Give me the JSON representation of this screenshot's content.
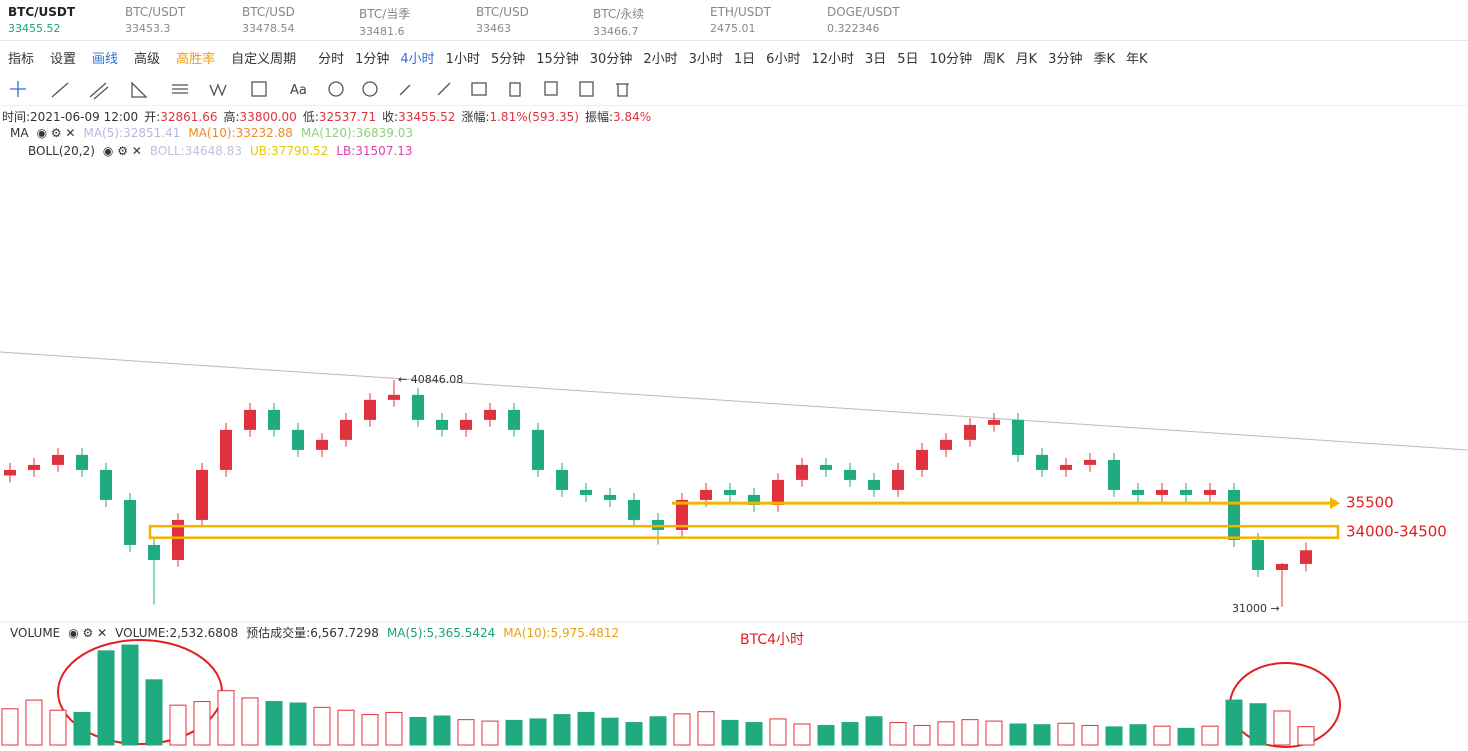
{
  "tabs": [
    {
      "name": "BTC/USDT",
      "price": "33455.52"
    },
    {
      "name": "BTC/USDT",
      "price": "33453.3"
    },
    {
      "name": "BTC/USD",
      "price": "33478.54"
    },
    {
      "name": "BTC/当季",
      "price": "33481.6"
    },
    {
      "name": "BTC/USD",
      "price": "33463"
    },
    {
      "name": "BTC/永续",
      "price": "33466.7"
    },
    {
      "name": "ETH/USDT",
      "price": "2475.01"
    },
    {
      "name": "DOGE/USDT",
      "price": "0.322346"
    }
  ],
  "menu": [
    "指标",
    "设置",
    "画线",
    "高级",
    "高胜率",
    "自定义周期"
  ],
  "periods": [
    "分时",
    "1分钟",
    "4小时",
    "1小时",
    "5分钟",
    "15分钟",
    "30分钟",
    "2小时",
    "3小时",
    "1日",
    "6小时",
    "12小时",
    "3日",
    "5日",
    "10分钟",
    "周K",
    "月K",
    "3分钟",
    "季K",
    "年K"
  ],
  "active_period": 2,
  "tool_text": "Aa",
  "info": [
    {
      "label": "时间:",
      "value": "2021-06-09 12:00"
    },
    {
      "label": "开:",
      "value": "32861.66"
    },
    {
      "label": "高:",
      "value": "33800.00"
    },
    {
      "label": "低:",
      "value": "32537.71"
    },
    {
      "label": "收:",
      "value": "33455.52"
    },
    {
      "label": "涨幅:",
      "value": "1.81%(593.35)"
    },
    {
      "label": "振幅:",
      "value": "3.84%"
    }
  ],
  "legends": [
    {
      "name": "MA",
      "items": [
        {
          "text": "MA(5):32851.41",
          "color": "#b8b8e0"
        },
        {
          "text": "MA(10):33232.88",
          "color": "#f08a24"
        },
        {
          "text": "MA(120):36839.03",
          "color": "#8fd17a"
        }
      ]
    },
    {
      "name": "BOLL(20,2)",
      "items": [
        {
          "text": "BOLL:34648.83",
          "color": "#c0c0e0"
        },
        {
          "text": "UB:37790.52",
          "color": "#e8c800"
        },
        {
          "text": "LB:31507.13",
          "color": "#e040b0"
        }
      ]
    }
  ],
  "volume_legend": {
    "name": "VOLUME",
    "items": [
      {
        "text": "VOLUME:2,532.6808",
        "color": "#333"
      },
      {
        "text": "预估成交量:6,567.7298",
        "color": "#333"
      },
      {
        "text": "MA(5):5,365.5424",
        "color": "#17a37a"
      },
      {
        "text": "MA(10):5,975.4812",
        "color": "#e8a018"
      }
    ]
  },
  "chart": {
    "type": "candlestick",
    "label": "BTC4小时",
    "ylim": [
      30430,
      51900
    ],
    "vlim": [
      0,
      14500
    ],
    "up_color": "#e0323e",
    "down_color": "#1faa80",
    "ohlc": [
      [
        36700,
        37240,
        36400,
        36940
      ],
      [
        36940,
        37457,
        36640,
        37157
      ],
      [
        37157,
        37891,
        36857,
        37591
      ],
      [
        37591,
        37891,
        36640,
        36940
      ],
      [
        36940,
        37240,
        35338,
        35638
      ],
      [
        35638,
        35938,
        33385,
        33685
      ],
      [
        33685,
        33985,
        31100,
        33034
      ],
      [
        33034,
        35070,
        32734,
        34770
      ],
      [
        34770,
        37240,
        34470,
        36940
      ],
      [
        36940,
        38976,
        36640,
        38676
      ],
      [
        38676,
        39844,
        38376,
        39544
      ],
      [
        39544,
        39844,
        38376,
        38676
      ],
      [
        38676,
        38976,
        37508,
        37808
      ],
      [
        37808,
        38542,
        37508,
        38242
      ],
      [
        38242,
        39410,
        37942,
        39110
      ],
      [
        39110,
        40278,
        38810,
        39978
      ],
      [
        39978,
        40846,
        39678,
        40195
      ],
      [
        40195,
        40495,
        38810,
        39110
      ],
      [
        39110,
        39410,
        38376,
        38676
      ],
      [
        38676,
        39410,
        38376,
        39110
      ],
      [
        39110,
        39844,
        38810,
        39544
      ],
      [
        39544,
        39844,
        38376,
        38676
      ],
      [
        38676,
        38976,
        36640,
        36940
      ],
      [
        36940,
        37240,
        35772,
        36072
      ],
      [
        36072,
        36372,
        35555,
        35855
      ],
      [
        35855,
        36155,
        35338,
        35638
      ],
      [
        35638,
        35938,
        34470,
        34770
      ],
      [
        34770,
        35070,
        33700,
        34336
      ],
      [
        34336,
        35938,
        34036,
        35638
      ],
      [
        35638,
        36372,
        35338,
        36072
      ],
      [
        36072,
        36372,
        35555,
        35855
      ],
      [
        35855,
        36155,
        35121,
        35421
      ],
      [
        35421,
        36806,
        35121,
        36506
      ],
      [
        36506,
        37457,
        36206,
        37157
      ],
      [
        37157,
        37457,
        36640,
        36940
      ],
      [
        36940,
        37240,
        36206,
        36506
      ],
      [
        36506,
        36806,
        35772,
        36072
      ],
      [
        36072,
        37240,
        35772,
        36940
      ],
      [
        36940,
        38108,
        36640,
        37808
      ],
      [
        37808,
        38542,
        37508,
        38242
      ],
      [
        38242,
        39193,
        37942,
        38893
      ],
      [
        38893,
        39410,
        38593,
        39110
      ],
      [
        39110,
        39410,
        37291,
        37591
      ],
      [
        37591,
        37891,
        36640,
        36940
      ],
      [
        36940,
        37457,
        36640,
        37157
      ],
      [
        37157,
        37674,
        36857,
        37374
      ],
      [
        37374,
        37674,
        35772,
        36072
      ],
      [
        36072,
        36372,
        35555,
        35855
      ],
      [
        35855,
        36372,
        35555,
        36072
      ],
      [
        36072,
        36372,
        35555,
        35855
      ],
      [
        35855,
        36372,
        35555,
        36072
      ],
      [
        36072,
        36372,
        33602,
        33902
      ],
      [
        33902,
        34202,
        32300,
        32600
      ],
      [
        32600,
        32900,
        31000,
        32862
      ],
      [
        32862,
        33800,
        32538,
        33455
      ]
    ],
    "volumes": [
      5000,
      6200,
      4800,
      4500,
      13000,
      13800,
      9000,
      5500,
      6000,
      7500,
      6500,
      6000,
      5800,
      5200,
      4800,
      4200,
      4500,
      3800,
      4000,
      3500,
      3300,
      3400,
      3600,
      4200,
      4500,
      3700,
      3100,
      3900,
      4300,
      4600,
      3400,
      3100,
      3600,
      2900,
      2700,
      3100,
      3900,
      3100,
      2700,
      3200,
      3500,
      3300,
      2900,
      2800,
      3000,
      2700,
      2500,
      2800,
      2600,
      2300,
      2600,
      6200,
      5700,
      4700,
      2533
    ],
    "high_note": {
      "label": "← 40846.08",
      "index": 16
    },
    "low_note": {
      "label": "31000 →",
      "index": 53
    },
    "levels": [
      {
        "label": "35500",
        "value": 35500
      }
    ],
    "zones": [
      {
        "label": "34000-34500",
        "low": 34000,
        "high": 34500
      }
    ]
  }
}
